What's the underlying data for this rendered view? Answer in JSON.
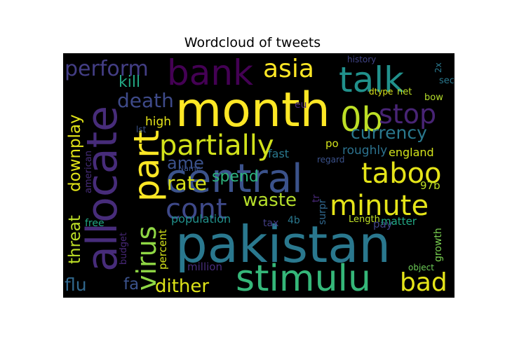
{
  "chart_data": {
    "type": "wordcloud",
    "title": "Wordcloud of tweets",
    "background": "#000000",
    "colormap": "viridis",
    "words": [
      {
        "text": "month",
        "color": "#fde725"
      },
      {
        "text": "pakistan",
        "color": "#2a788e"
      },
      {
        "text": "allocate",
        "color": "#472c7a"
      },
      {
        "text": "central",
        "color": "#3b528b"
      },
      {
        "text": "part",
        "color": "#fde725"
      },
      {
        "text": "stimulu",
        "color": "#35b779"
      },
      {
        "text": "bank",
        "color": "#440154"
      },
      {
        "text": "talk",
        "color": "#21918c"
      },
      {
        "text": "0b",
        "color": "#bddf26"
      },
      {
        "text": "partially",
        "color": "#d2e21b"
      },
      {
        "text": "virus",
        "color": "#8fd744"
      },
      {
        "text": "taboo",
        "color": "#e5e419"
      },
      {
        "text": "minute",
        "color": "#e5e419"
      },
      {
        "text": "cont",
        "color": "#3e4989"
      },
      {
        "text": "stop",
        "color": "#482475"
      },
      {
        "text": "asia",
        "color": "#fde725"
      },
      {
        "text": "perform",
        "color": "#433e85"
      },
      {
        "text": "bad",
        "color": "#e5e419"
      },
      {
        "text": "dither",
        "color": "#dde318"
      },
      {
        "text": "waste",
        "color": "#b5de2b"
      },
      {
        "text": "rate",
        "color": "#d8e219"
      },
      {
        "text": "currency",
        "color": "#2a788e"
      },
      {
        "text": "death",
        "color": "#3e4a89"
      },
      {
        "text": "ame",
        "color": "#3b528b"
      },
      {
        "text": "spend",
        "color": "#2db27d"
      },
      {
        "text": "threat",
        "color": "#bddf26"
      },
      {
        "text": "downplay",
        "color": "#e2e418"
      },
      {
        "text": "flu",
        "color": "#31688e"
      },
      {
        "text": "fa",
        "color": "#3b528b"
      },
      {
        "text": "kill",
        "color": "#22a884"
      },
      {
        "text": "high",
        "color": "#e5e419"
      },
      {
        "text": "roughly",
        "color": "#2c728e"
      },
      {
        "text": "england",
        "color": "#d2e21b"
      },
      {
        "text": "fast",
        "color": "#2a788e"
      },
      {
        "text": "population",
        "color": "#21918c"
      },
      {
        "text": "percent",
        "color": "#d2e21b"
      },
      {
        "text": "million",
        "color": "#472d7b"
      },
      {
        "text": "growth",
        "color": "#7ad151"
      },
      {
        "text": "97b",
        "color": "#bddf26"
      },
      {
        "text": "pay",
        "color": "#414487"
      },
      {
        "text": "matter",
        "color": "#22a884"
      },
      {
        "text": "Length",
        "color": "#bddf26"
      },
      {
        "text": "object",
        "color": "#6ece58"
      },
      {
        "text": "budget",
        "color": "#482878"
      },
      {
        "text": "american",
        "color": "#472d7b"
      },
      {
        "text": "free",
        "color": "#22a884"
      },
      {
        "text": "eu",
        "color": "#482878"
      },
      {
        "text": "lst",
        "color": "#3b528b"
      },
      {
        "text": "Name",
        "color": "#3b528b"
      },
      {
        "text": "regard",
        "color": "#3b528b"
      },
      {
        "text": "history",
        "color": "#414487"
      },
      {
        "text": "dtype",
        "color": "#d8e219"
      },
      {
        "text": "net",
        "color": "#bddf26"
      },
      {
        "text": "bow",
        "color": "#b5de2b"
      },
      {
        "text": "sec",
        "color": "#2a788e"
      },
      {
        "text": "2x",
        "color": "#2a788e"
      },
      {
        "text": "po",
        "color": "#d2e21b"
      },
      {
        "text": "tr",
        "color": "#482878"
      },
      {
        "text": "surpr",
        "color": "#31688e"
      },
      {
        "text": "tax",
        "color": "#433e85"
      },
      {
        "text": "4b",
        "color": "#2a788e"
      }
    ]
  }
}
